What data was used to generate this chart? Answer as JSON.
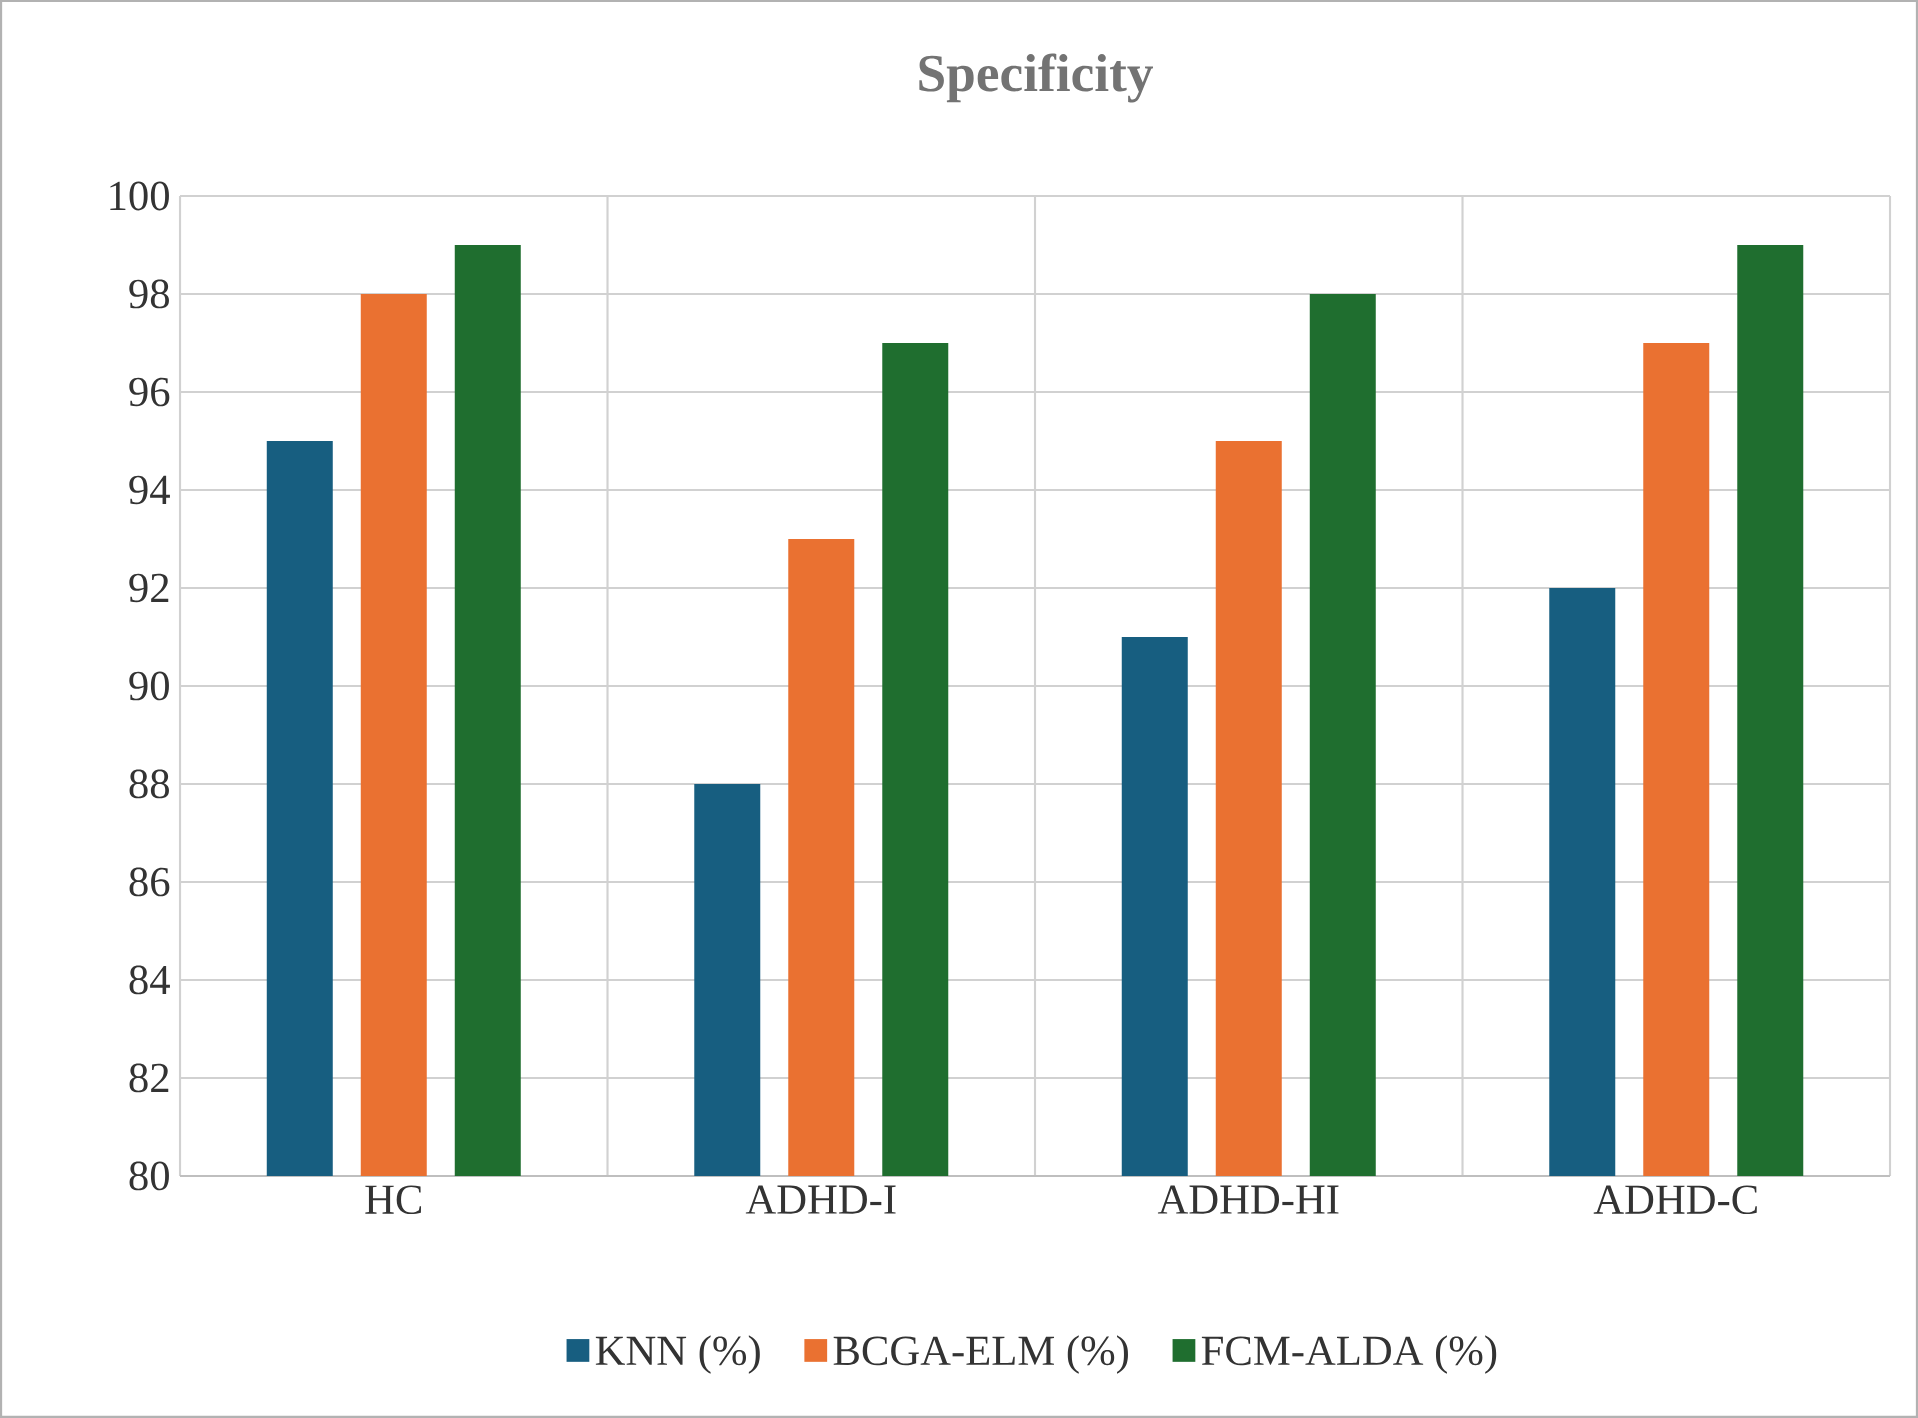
{
  "chart_data": {
    "type": "bar",
    "title": "Specificity",
    "categories": [
      "HC",
      "ADHD-I",
      "ADHD-HI",
      "ADHD-C"
    ],
    "series": [
      {
        "name": "KNN (%)",
        "color": "#175e80",
        "values": [
          95,
          88,
          91,
          92
        ]
      },
      {
        "name": "BCGA-ELM (%)",
        "color": "#ea7131",
        "values": [
          98,
          93,
          95,
          97
        ]
      },
      {
        "name": "FCM-ALDA (%)",
        "color": "#1f6e2f",
        "values": [
          99,
          97,
          98,
          99
        ]
      }
    ],
    "ylim": [
      80,
      100
    ],
    "yticks": [
      80,
      82,
      84,
      86,
      88,
      90,
      92,
      94,
      96,
      98,
      100
    ],
    "grid": true,
    "legend": "bottom"
  }
}
